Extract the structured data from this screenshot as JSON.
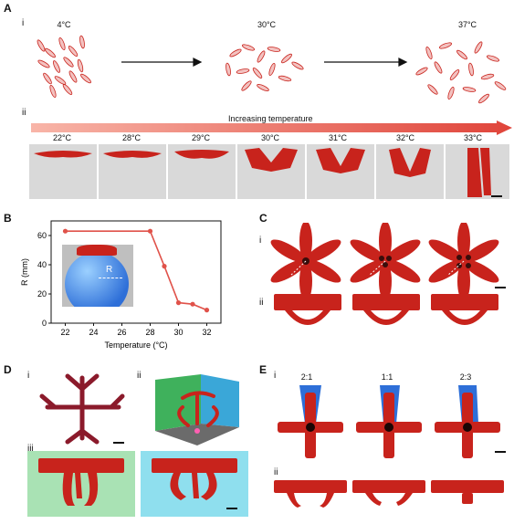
{
  "panels": {
    "A": {
      "letter": "A",
      "i": {
        "label": "i",
        "temps": [
          "4°C",
          "30°C",
          "37°C"
        ]
      },
      "ii": {
        "label": "ii",
        "arrow_label": "Increasing temperature",
        "temps": [
          "22°C",
          "28°C",
          "29°C",
          "30°C",
          "31°C",
          "32°C",
          "33°C"
        ]
      }
    },
    "B": {
      "letter": "B",
      "inset_label": "R"
    },
    "C": {
      "letter": "C",
      "i": "i",
      "ii": "ii"
    },
    "D": {
      "letter": "D",
      "i": "i",
      "ii": "ii",
      "iii": "iii"
    },
    "E": {
      "letter": "E",
      "i": "i",
      "ii": "ii",
      "ratios": [
        "2:1",
        "1:1",
        "2:3"
      ]
    }
  },
  "chart_data": {
    "type": "line",
    "xlabel": "Temperature (°C)",
    "ylabel": "R (mm)",
    "x": [
      22,
      28,
      29,
      30,
      31,
      32
    ],
    "y": [
      63,
      63,
      39,
      14,
      13,
      9
    ],
    "xticks": [
      22,
      24,
      26,
      28,
      30,
      32
    ],
    "yticks": [
      0,
      20,
      40,
      60
    ],
    "xlim": [
      21,
      33
    ],
    "ylim": [
      0,
      70
    ],
    "grid": false,
    "color": "#e0524a"
  },
  "colors": {
    "accent_red": "#c8231c",
    "arrow_red": "#e0443a",
    "box_gray": "#d9d9d9",
    "bg_green": "#a9e2b4",
    "bg_cyan": "#8fdfee",
    "blue": "#2e6fd8"
  }
}
